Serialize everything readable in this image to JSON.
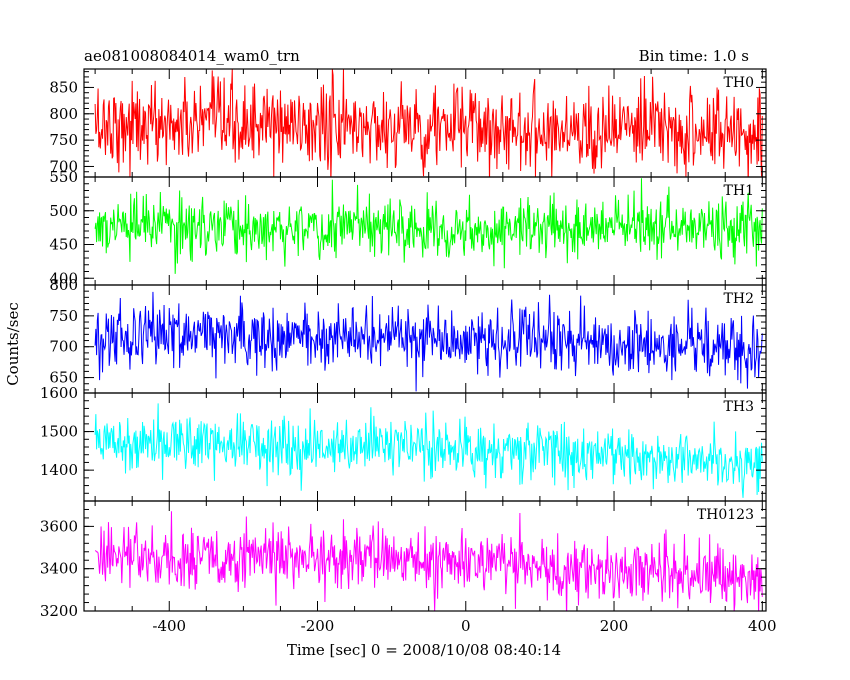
{
  "header": {
    "title": "ae081008084014_wam0_trn",
    "bin_time": "Bin time: 1.0 s"
  },
  "axes": {
    "ylabel": "Counts/sec",
    "xlabel": "Time [sec] 0 = 2008/10/08 08:40:14"
  },
  "chart_data": [
    {
      "type": "line",
      "name": "TH0",
      "color": "#ff0000",
      "xlim": [
        -515,
        405
      ],
      "ylim": [
        680,
        885
      ],
      "yticks": [
        700,
        750,
        800,
        850
      ],
      "series": [
        {
          "name": "TH0",
          "x_range": [
            -500,
            400
          ],
          "x_step": 1,
          "mean": [
            780,
            775,
            765
          ],
          "noise_sd": 40
        }
      ]
    },
    {
      "type": "line",
      "name": "TH1",
      "color": "#00ff00",
      "xlim": [
        -515,
        405
      ],
      "ylim": [
        390,
        550
      ],
      "yticks": [
        400,
        450,
        500,
        550
      ],
      "series": [
        {
          "name": "TH1",
          "x_range": [
            -500,
            400
          ],
          "x_step": 1,
          "mean": [
            475,
            475,
            475
          ],
          "noise_sd": 22
        }
      ]
    },
    {
      "type": "line",
      "name": "TH2",
      "color": "#0000ff",
      "xlim": [
        -515,
        405
      ],
      "ylim": [
        625,
        800
      ],
      "yticks": [
        650,
        700,
        750,
        800
      ],
      "series": [
        {
          "name": "TH2",
          "x_range": [
            -500,
            400
          ],
          "x_step": 1,
          "mean": [
            720,
            715,
            695
          ],
          "noise_sd": 26
        }
      ]
    },
    {
      "type": "line",
      "name": "TH3",
      "color": "#00ffff",
      "xlim": [
        -515,
        405
      ],
      "ylim": [
        1320,
        1600
      ],
      "yticks": [
        1400,
        1500,
        1600
      ],
      "series": [
        {
          "name": "TH3",
          "x_range": [
            -500,
            400
          ],
          "x_step": 1,
          "mean": [
            1480,
            1460,
            1420
          ],
          "noise_sd": 38
        }
      ]
    },
    {
      "type": "line",
      "name": "TH0123",
      "color": "#ff00ff",
      "xlim": [
        -515,
        405
      ],
      "ylim": [
        3200,
        3720
      ],
      "yticks": [
        3200,
        3400,
        3600
      ],
      "series": [
        {
          "name": "TH0123",
          "x_range": [
            -500,
            400
          ],
          "x_step": 1,
          "mean": [
            3460,
            3440,
            3360
          ],
          "noise_sd": 75
        }
      ]
    }
  ],
  "xticks": [
    -400,
    -200,
    0,
    200,
    400
  ]
}
